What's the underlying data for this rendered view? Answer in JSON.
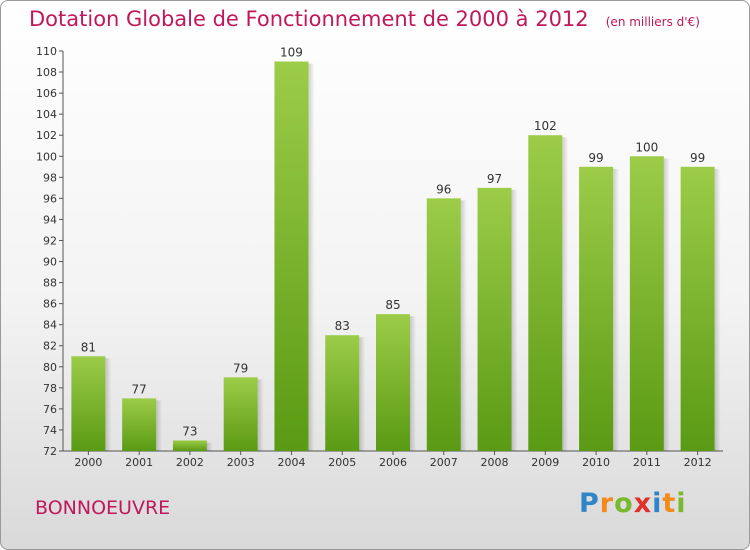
{
  "title": "Dotation Globale de Fonctionnement de 2000 à 2012",
  "subtitle": "(en milliers d'€)",
  "commune": "BONNOEUVRE",
  "logo": {
    "letters": [
      "P",
      "r",
      "o",
      "x",
      "i",
      "t",
      "i"
    ],
    "colors": [
      "#2e86c8",
      "#f28a1c",
      "#7ab82e",
      "#e0322d",
      "#2e86c8",
      "#f28a1c",
      "#7ab82e"
    ]
  },
  "colors": {
    "bar_light": "#9ccc48",
    "bar_dark": "#5a9a14",
    "accent": "#c0185a"
  },
  "chart_data": {
    "type": "bar",
    "categories": [
      "2000",
      "2001",
      "2002",
      "2003",
      "2004",
      "2005",
      "2006",
      "2007",
      "2008",
      "2009",
      "2010",
      "2011",
      "2012"
    ],
    "values": [
      81,
      77,
      73,
      79,
      109,
      83,
      85,
      96,
      97,
      102,
      99,
      100,
      99
    ],
    "data_labels": [
      "81",
      "77",
      "73",
      "79",
      "109",
      "83",
      "85",
      "96",
      "97",
      "102",
      "99",
      "100",
      "99"
    ],
    "ylim": [
      72,
      110
    ],
    "yticks": [
      72,
      74,
      76,
      78,
      80,
      82,
      84,
      86,
      88,
      90,
      92,
      94,
      96,
      98,
      100,
      102,
      104,
      106,
      108,
      110
    ],
    "grid": false
  }
}
